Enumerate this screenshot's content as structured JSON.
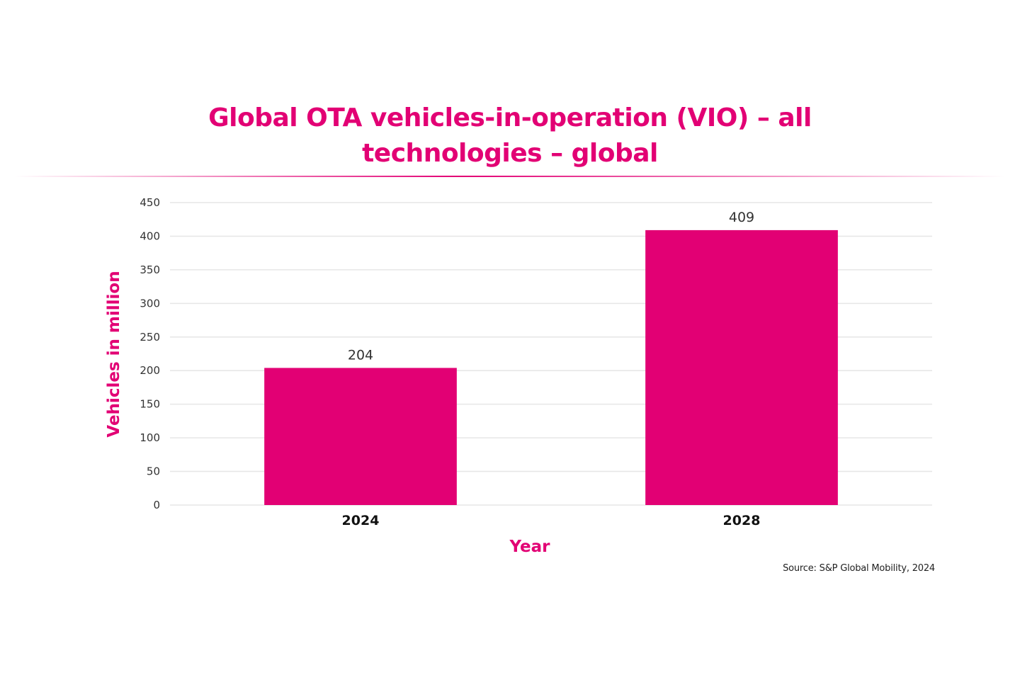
{
  "colors": {
    "accent": "#e20074",
    "bar": "#e20074",
    "gridline": "#e6e6e6",
    "tick_text": "#333333",
    "category_text": "#111111"
  },
  "chart_data": {
    "type": "bar",
    "title": "Global OTA vehicles-in-operation (VIO) – all technologies – global",
    "title_line1": "Global OTA vehicles-in-operation (VIO) – all",
    "title_line2": "technologies – global",
    "xlabel": "Year",
    "ylabel": "Vehicles in million",
    "categories": [
      "2024",
      "2028"
    ],
    "values": [
      204,
      409
    ],
    "data_labels": [
      "204",
      "409"
    ],
    "ylim": [
      0,
      450
    ],
    "yticks": [
      0,
      50,
      100,
      150,
      200,
      250,
      300,
      350,
      400,
      450
    ],
    "grid": true,
    "source": "Source: S&P Global Mobility, 2024"
  }
}
